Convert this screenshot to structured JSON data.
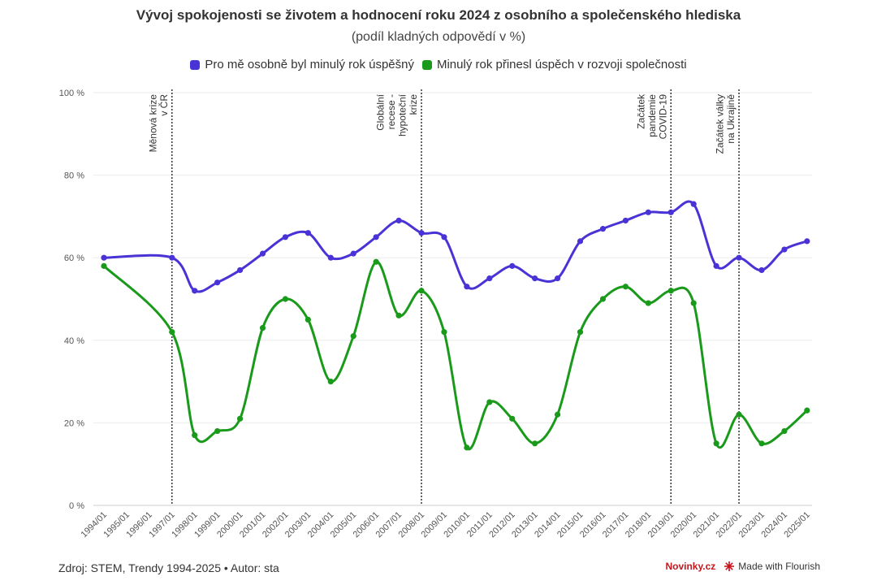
{
  "chart_data": {
    "type": "line",
    "title": "Vývoj spokojenosti se životem a hodnocení roku 2024 z osobního a společenského hlediska",
    "subtitle": "(podíl kladných odpovědí v %)",
    "categories": [
      "1994/01",
      "1995/01",
      "1996/01",
      "1997/01",
      "1998/01",
      "1999/01",
      "2000/01",
      "2001/01",
      "2002/01",
      "2003/01",
      "2004/01",
      "2005/01",
      "2006/01",
      "2007/01",
      "2008/01",
      "2009/01",
      "2010/01",
      "2011/01",
      "2012/01",
      "2013/01",
      "2014/01",
      "2015/01",
      "2016/01",
      "2017/01",
      "2018/01",
      "2019/01",
      "2020/01",
      "2021/01",
      "2022/01",
      "2023/01",
      "2024/01",
      "2025/01"
    ],
    "y_ticks": [
      "0 %",
      "20 %",
      "40 %",
      "60 %",
      "80 %",
      "100 %"
    ],
    "ylim": [
      0,
      100
    ],
    "series": [
      {
        "name": "Pro mě osobně byl minulý rok úspěšný",
        "color": "#4a33d6",
        "values": [
          60,
          null,
          null,
          60,
          52,
          54,
          57,
          61,
          65,
          66,
          60,
          61,
          65,
          69,
          66,
          65,
          53,
          55,
          58,
          55,
          55,
          64,
          67,
          69,
          71,
          71,
          73,
          58,
          60,
          57,
          62,
          64
        ]
      },
      {
        "name": "Minulý rok přinesl úspěch v rozvoji společnosti",
        "color": "#1a9a1a",
        "values": [
          58,
          null,
          null,
          42,
          17,
          18,
          21,
          43,
          50,
          45,
          30,
          41,
          59,
          46,
          52,
          42,
          14,
          25,
          21,
          15,
          22,
          42,
          50,
          53,
          49,
          52,
          49,
          15,
          22,
          15,
          18,
          23
        ]
      }
    ],
    "annotations": [
      {
        "category": "1997/01",
        "lines": [
          "Měnová krize",
          "v ČR"
        ]
      },
      {
        "category": "2008/01",
        "lines": [
          "Globální",
          "recese -",
          "hypoteční",
          "krize"
        ]
      },
      {
        "category": "2019/01",
        "lines": [
          "Začátek",
          "pandemie",
          "COVID-19"
        ]
      },
      {
        "category": "2022/01",
        "lines": [
          "Začátek války",
          "na Ukrajině"
        ]
      }
    ],
    "grid": true,
    "legend_position": "top-center"
  },
  "footer": {
    "source": "Zdroj: STEM, Trendy 1994-2025 • Autor: sta",
    "brand": "Novinky.cz",
    "made_with": "Made with Flourish"
  }
}
